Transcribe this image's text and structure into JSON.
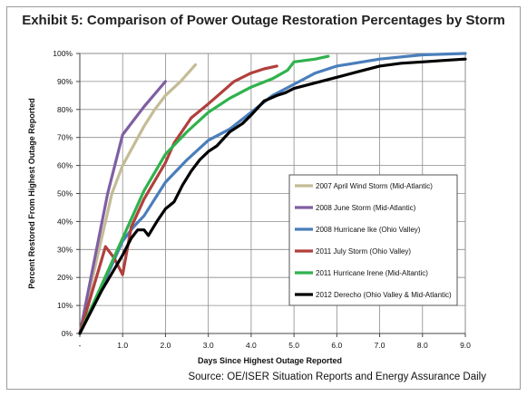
{
  "chart_data": {
    "type": "line",
    "title": "Exhibit 5: Comparison of Power Outage Restoration Percentages by Storm",
    "xlabel": "Days Since Highest Outage  Reported",
    "ylabel": "Percent Restored From Highest Outage Reported",
    "xlim": [
      0,
      9
    ],
    "ylim": [
      0,
      100
    ],
    "x_ticks": [
      "-",
      "1.0",
      "2.0",
      "3.0",
      "4.0",
      "5.0",
      "6.0",
      "7.0",
      "8.0",
      "9.0"
    ],
    "y_ticks": [
      "0%",
      "10%",
      "20%",
      "30%",
      "40%",
      "50%",
      "60%",
      "70%",
      "80%",
      "90%",
      "100%"
    ],
    "grid": true,
    "legend_position": "lower-right",
    "series": [
      {
        "name": "2007 April Wind Storm (Mid-Atlantic)",
        "color": "#c4bc96",
        "points": [
          [
            0,
            0
          ],
          [
            0.75,
            50
          ],
          [
            1.0,
            60
          ],
          [
            1.5,
            74
          ],
          [
            1.75,
            80
          ],
          [
            2.0,
            85
          ],
          [
            2.35,
            90
          ],
          [
            2.7,
            96
          ]
        ]
      },
      {
        "name": "2008 June Storm (Mid-Atlantic)",
        "color": "#7f5fa2",
        "points": [
          [
            0,
            0
          ],
          [
            0.65,
            50
          ],
          [
            1.0,
            71
          ],
          [
            1.5,
            81
          ],
          [
            2.0,
            90
          ]
        ]
      },
      {
        "name": "2008 Hurricane Ike (Ohio Valley)",
        "color": "#4a7ebb",
        "points": [
          [
            0,
            0
          ],
          [
            0.5,
            16
          ],
          [
            1.0,
            33
          ],
          [
            1.25,
            38
          ],
          [
            1.5,
            42
          ],
          [
            2.0,
            54
          ],
          [
            2.5,
            62
          ],
          [
            3.0,
            69
          ],
          [
            3.5,
            73
          ],
          [
            4.0,
            79
          ],
          [
            4.5,
            85
          ],
          [
            5.0,
            89
          ],
          [
            5.5,
            93
          ],
          [
            6.0,
            95.5
          ],
          [
            7.0,
            98
          ],
          [
            8.0,
            99.5
          ],
          [
            9.0,
            100
          ]
        ]
      },
      {
        "name": "2011 July Storm (Ohio Valley)",
        "color": "#b0403e",
        "points": [
          [
            0,
            0
          ],
          [
            0.6,
            31
          ],
          [
            0.8,
            27
          ],
          [
            1.0,
            21
          ],
          [
            1.2,
            38
          ],
          [
            1.5,
            48
          ],
          [
            2.0,
            61
          ],
          [
            2.2,
            68
          ],
          [
            2.6,
            77
          ],
          [
            3.0,
            82
          ],
          [
            3.3,
            86
          ],
          [
            3.6,
            90
          ],
          [
            4.0,
            93
          ],
          [
            4.3,
            94.5
          ],
          [
            4.6,
            95.5
          ]
        ]
      },
      {
        "name": "2011 Hurricane Irene (Mid-Altantic)",
        "color": "#2fb24c",
        "points": [
          [
            0,
            0
          ],
          [
            0.5,
            17
          ],
          [
            1.0,
            34
          ],
          [
            1.5,
            51
          ],
          [
            2.0,
            64
          ],
          [
            2.5,
            72
          ],
          [
            3.0,
            79
          ],
          [
            3.5,
            84
          ],
          [
            4.0,
            88
          ],
          [
            4.5,
            91
          ],
          [
            4.85,
            94
          ],
          [
            5.0,
            97
          ],
          [
            5.5,
            98
          ],
          [
            5.8,
            99
          ]
        ]
      },
      {
        "name": "2012 Derecho (Ohio Valley & Mid-Atlantic)",
        "color": "#000000",
        "points": [
          [
            0,
            0
          ],
          [
            0.5,
            15
          ],
          [
            1.0,
            28
          ],
          [
            1.2,
            34
          ],
          [
            1.35,
            37
          ],
          [
            1.5,
            37
          ],
          [
            1.6,
            35
          ],
          [
            1.8,
            40
          ],
          [
            2.0,
            44.5
          ],
          [
            2.2,
            47
          ],
          [
            2.4,
            53
          ],
          [
            2.6,
            58
          ],
          [
            2.8,
            62
          ],
          [
            3.0,
            65
          ],
          [
            3.2,
            67
          ],
          [
            3.5,
            72
          ],
          [
            3.8,
            75
          ],
          [
            4.0,
            78
          ],
          [
            4.3,
            83
          ],
          [
            4.6,
            85
          ],
          [
            4.8,
            86
          ],
          [
            5.0,
            87.5
          ],
          [
            5.5,
            89.5
          ],
          [
            6.0,
            91.5
          ],
          [
            6.5,
            93.5
          ],
          [
            7.0,
            95.5
          ],
          [
            7.5,
            96.5
          ],
          [
            8.0,
            97
          ],
          [
            8.5,
            97.5
          ],
          [
            9.0,
            98
          ]
        ]
      }
    ],
    "source": "Source: OE/ISER Situation Reports and Energy Assurance Daily"
  }
}
